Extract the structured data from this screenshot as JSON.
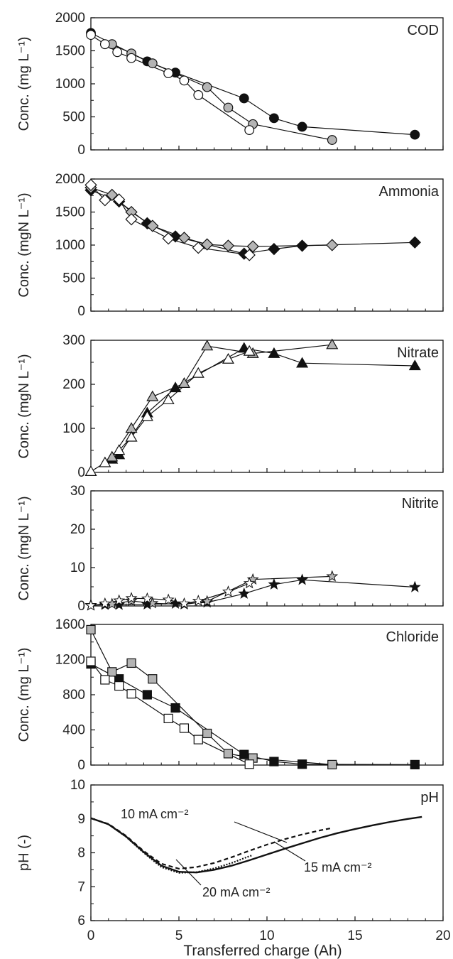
{
  "figure": {
    "xlabel": "Transferred charge (Ah)",
    "xlim": [
      0,
      20
    ],
    "xticks": [
      0,
      5,
      10,
      15,
      20
    ]
  },
  "chart_data": [
    {
      "type": "line",
      "title": "COD",
      "ylabel": "Conc. (mg L⁻¹)",
      "ylim": [
        0,
        2000
      ],
      "yticks": [
        0,
        500,
        1000,
        1500,
        2000
      ],
      "marker": "circle",
      "series": [
        {
          "fill": "#111111",
          "x": [
            0,
            3.2,
            4.8,
            8.7,
            10.4,
            12.0,
            18.4
          ],
          "y": [
            1770,
            1340,
            1170,
            780,
            480,
            350,
            230
          ]
        },
        {
          "fill": "#b4b4b4",
          "x": [
            1.2,
            2.3,
            3.5,
            6.6,
            7.8,
            9.2,
            13.7
          ],
          "y": [
            1600,
            1460,
            1310,
            950,
            640,
            390,
            150
          ]
        },
        {
          "fill": "#ffffff",
          "x": [
            0,
            0.8,
            1.5,
            2.3,
            4.4,
            5.3,
            6.1,
            9.0
          ],
          "y": [
            1740,
            1600,
            1480,
            1390,
            1160,
            1050,
            830,
            300
          ]
        }
      ]
    },
    {
      "type": "line",
      "title": "Ammonia",
      "ylabel": "Conc. (mgN L⁻¹)",
      "ylim": [
        0,
        2000
      ],
      "yticks": [
        0,
        500,
        1000,
        1500,
        2000
      ],
      "marker": "diamond",
      "series": [
        {
          "fill": "#111111",
          "x": [
            0,
            1.6,
            3.2,
            4.8,
            8.7,
            10.4,
            12.0,
            18.4
          ],
          "y": [
            1830,
            1660,
            1330,
            1130,
            870,
            940,
            990,
            1040
          ]
        },
        {
          "fill": "#b4b4b4",
          "x": [
            0,
            1.2,
            2.3,
            3.5,
            5.3,
            6.6,
            7.8,
            9.2,
            13.7
          ],
          "y": [
            1870,
            1760,
            1500,
            1290,
            1110,
            1010,
            990,
            980,
            1000
          ]
        },
        {
          "fill": "#ffffff",
          "x": [
            0,
            0.8,
            1.6,
            2.3,
            4.4,
            6.1,
            9.0
          ],
          "y": [
            1910,
            1680,
            1690,
            1390,
            1100,
            960,
            850
          ]
        }
      ]
    },
    {
      "type": "line",
      "title": "Nitrate",
      "ylabel": "Conc. (mgN L⁻¹)",
      "ylim": [
        0,
        300
      ],
      "yticks": [
        0,
        100,
        200,
        300
      ],
      "marker": "triangle",
      "series": [
        {
          "fill": "#111111",
          "x": [
            1.2,
            1.6,
            3.2,
            4.8,
            8.7,
            10.4,
            12.0,
            18.4
          ],
          "y": [
            30,
            40,
            135,
            192,
            282,
            270,
            248,
            242
          ]
        },
        {
          "fill": "#b4b4b4",
          "x": [
            1.2,
            2.3,
            3.5,
            5.3,
            6.6,
            9.2,
            13.7
          ],
          "y": [
            35,
            100,
            172,
            202,
            287,
            270,
            290
          ]
        },
        {
          "fill": "#ffffff",
          "x": [
            0,
            0.8,
            1.6,
            2.3,
            3.2,
            4.4,
            6.1,
            7.8,
            9.0
          ],
          "y": [
            2,
            22,
            50,
            80,
            127,
            165,
            225,
            257,
            275
          ]
        }
      ]
    },
    {
      "type": "line",
      "title": "Nitrite",
      "ylabel": "Conc. (mgN L⁻¹)",
      "ylim": [
        0,
        30
      ],
      "yticks": [
        0,
        10,
        20,
        30
      ],
      "marker": "star",
      "series": [
        {
          "fill": "#111111",
          "x": [
            0,
            0.8,
            1.6,
            3.2,
            4.8,
            6.6,
            8.7,
            10.4,
            12.0,
            18.4
          ],
          "y": [
            0.2,
            0.3,
            0.3,
            0.4,
            0.6,
            0.9,
            3.2,
            5.6,
            6.8,
            4.9
          ]
        },
        {
          "fill": "#b4b4b4",
          "x": [
            0,
            1.2,
            2.3,
            3.5,
            5.3,
            6.6,
            9.2,
            13.7
          ],
          "y": [
            0.2,
            0.5,
            1.3,
            0.7,
            0.4,
            1.2,
            6.9,
            7.7
          ]
        },
        {
          "fill": "#ffffff",
          "x": [
            0,
            0.8,
            1.6,
            2.3,
            3.2,
            4.4,
            5.3,
            6.1,
            7.8,
            9.0
          ],
          "y": [
            0.1,
            0.6,
            1.4,
            2.0,
            1.9,
            1.6,
            0.6,
            1.3,
            3.7,
            5.9
          ]
        }
      ]
    },
    {
      "type": "line",
      "title": "Chloride",
      "ylabel": "Conc. (mg L⁻¹)",
      "ylim": [
        0,
        1600
      ],
      "yticks": [
        0,
        400,
        800,
        1200,
        1600
      ],
      "marker": "square",
      "series": [
        {
          "fill": "#111111",
          "x": [
            0,
            1.6,
            3.2,
            4.8,
            8.7,
            10.4,
            12.0,
            18.4
          ],
          "y": [
            1150,
            980,
            800,
            650,
            120,
            40,
            10,
            5
          ]
        },
        {
          "fill": "#b4b4b4",
          "x": [
            0,
            1.2,
            2.3,
            3.5,
            6.6,
            7.8,
            9.2,
            13.7
          ],
          "y": [
            1540,
            1060,
            1160,
            980,
            360,
            130,
            80,
            5
          ]
        },
        {
          "fill": "#ffffff",
          "x": [
            0,
            0.8,
            1.6,
            2.3,
            4.4,
            5.3,
            6.1,
            9.0
          ],
          "y": [
            1180,
            970,
            900,
            810,
            530,
            420,
            290,
            10
          ]
        }
      ]
    },
    {
      "type": "line",
      "title": "pH",
      "ylabel": "pH (-)",
      "ylim": [
        6,
        10
      ],
      "yticks": [
        6,
        7,
        8,
        9,
        10
      ],
      "marker": "none",
      "series": [
        {
          "name": "10 mA cm⁻²",
          "dash": "6 4",
          "x": [
            0,
            1,
            2,
            3,
            4,
            5,
            6,
            7,
            8,
            9,
            10,
            11,
            12,
            13,
            13.7
          ],
          "y": [
            9.02,
            8.85,
            8.5,
            8.05,
            7.68,
            7.53,
            7.58,
            7.7,
            7.87,
            8.06,
            8.24,
            8.4,
            8.54,
            8.66,
            8.73
          ]
        },
        {
          "name": "15 mA cm⁻²",
          "dash": "",
          "x": [
            0,
            1,
            2,
            3,
            4,
            5,
            6,
            7,
            8,
            9,
            10,
            11,
            12,
            13,
            14,
            15,
            16,
            17,
            18,
            18.8
          ],
          "y": [
            9.02,
            8.84,
            8.48,
            8.02,
            7.62,
            7.44,
            7.42,
            7.5,
            7.62,
            7.78,
            7.95,
            8.12,
            8.28,
            8.44,
            8.58,
            8.7,
            8.81,
            8.91,
            9.0,
            9.06
          ]
        },
        {
          "name": "20 mA cm⁻²",
          "dash": "2 2",
          "x": [
            0,
            1,
            2,
            3,
            4,
            5,
            6,
            7,
            8,
            9,
            9.2
          ],
          "y": [
            9.02,
            8.84,
            8.47,
            8.0,
            7.58,
            7.41,
            7.43,
            7.54,
            7.7,
            7.9,
            7.93
          ]
        }
      ],
      "annotations": [
        {
          "label": "10 mA cm⁻²",
          "target_series": "10 mA cm⁻²"
        },
        {
          "label": "15 mA cm⁻²",
          "target_series": "15 mA cm⁻²"
        },
        {
          "label": "20 mA cm⁻²",
          "target_series": "20 mA cm⁻²"
        }
      ]
    }
  ]
}
